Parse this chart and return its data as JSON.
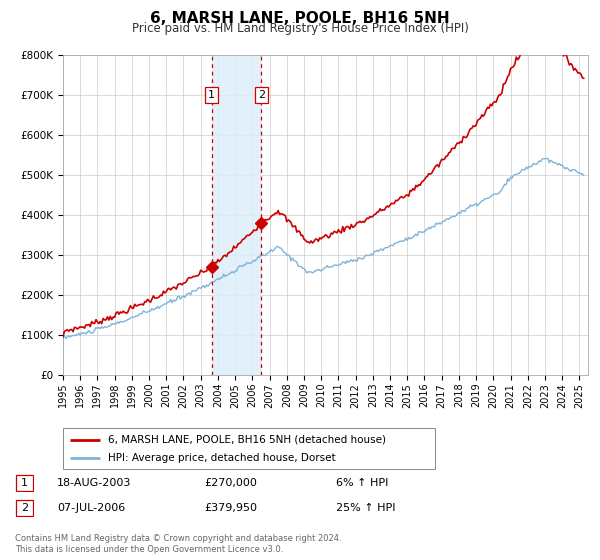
{
  "title": "6, MARSH LANE, POOLE, BH16 5NH",
  "subtitle": "Price paid vs. HM Land Registry's House Price Index (HPI)",
  "background_color": "#ffffff",
  "grid_color": "#cccccc",
  "hpi_color": "#7fb3d9",
  "price_color": "#cc0000",
  "ylim": [
    0,
    800000
  ],
  "yticks": [
    0,
    100000,
    200000,
    300000,
    400000,
    500000,
    600000,
    700000,
    800000
  ],
  "ytick_labels": [
    "£0",
    "£100K",
    "£200K",
    "£300K",
    "£400K",
    "£500K",
    "£600K",
    "£700K",
    "£800K"
  ],
  "xlim_start": 1995.0,
  "xlim_end": 2025.5,
  "sale1_date": 2003.63,
  "sale1_price": 270000,
  "sale2_date": 2006.52,
  "sale2_price": 379950,
  "legend_label_price": "6, MARSH LANE, POOLE, BH16 5NH (detached house)",
  "legend_label_hpi": "HPI: Average price, detached house, Dorset",
  "table_row1": [
    "1",
    "18-AUG-2003",
    "£270,000",
    "6% ↑ HPI"
  ],
  "table_row2": [
    "2",
    "07-JUL-2006",
    "£379,950",
    "25% ↑ HPI"
  ],
  "footer_line1": "Contains HM Land Registry data © Crown copyright and database right 2024.",
  "footer_line2": "This data is licensed under the Open Government Licence v3.0.",
  "shade_start": 2003.63,
  "shade_end": 2006.52
}
